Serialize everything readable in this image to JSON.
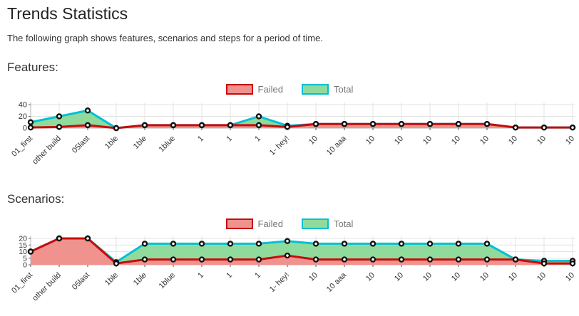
{
  "page": {
    "title": "Trends Statistics",
    "subtitle": "The following graph shows features, scenarios and steps for a period of time."
  },
  "legend": {
    "failed_label": "Failed",
    "total_label": "Total"
  },
  "colors": {
    "failed_line": "#c60c0c",
    "failed_fill": "#f0928d",
    "total_line": "#00c0d5",
    "total_fill": "#90db9c",
    "grid": "#e3e3e3",
    "axis": "#b3b3b3",
    "tick": "#555555",
    "text": "#333333",
    "marker_ring": "#111111",
    "marker_fill": "#ffffff",
    "legend_text": "#757575"
  },
  "chart_data": [
    {
      "type": "area",
      "title": "Features:",
      "categories": [
        "01_first",
        "other build",
        "05last",
        "1ble",
        "1ble",
        "1blue",
        "1",
        "1",
        "1",
        "1- hey!",
        "10",
        "10 aaa",
        "10",
        "10",
        "10",
        "10",
        "10",
        "10",
        "10",
        "10"
      ],
      "series": [
        {
          "name": "Failed",
          "values": [
            1,
            2,
            5,
            0,
            5,
            5,
            5,
            5,
            5,
            2,
            7,
            7,
            7,
            7,
            7,
            7,
            7,
            1,
            1,
            1
          ]
        },
        {
          "name": "Total",
          "values": [
            10,
            20,
            30,
            0,
            5,
            5,
            5,
            5,
            20,
            4,
            7,
            7,
            7,
            7,
            7,
            7,
            7,
            1,
            1,
            1
          ]
        }
      ],
      "ylim": [
        0,
        40
      ],
      "yticks": [
        0,
        20,
        40
      ],
      "legend_entries": [
        "Failed",
        "Total"
      ],
      "legend_position": "top-center",
      "grid": true
    },
    {
      "type": "area",
      "title": "Scenarios:",
      "categories": [
        "01_first",
        "other build",
        "05last",
        "1ble",
        "1ble",
        "1blue",
        "1",
        "1",
        "1",
        "1- hey!",
        "10",
        "10 aaa",
        "10",
        "10",
        "10",
        "10",
        "10",
        "10",
        "10",
        "10"
      ],
      "series": [
        {
          "name": "Failed",
          "values": [
            10,
            20,
            20,
            1,
            4,
            4,
            4,
            4,
            4,
            7,
            4,
            4,
            4,
            4,
            4,
            4,
            4,
            4,
            1,
            1
          ]
        },
        {
          "name": "Total",
          "values": [
            10,
            20,
            20,
            2,
            16,
            16,
            16,
            16,
            16,
            18,
            16,
            16,
            16,
            16,
            16,
            16,
            16,
            4,
            3,
            3
          ]
        }
      ],
      "ylim": [
        0,
        20
      ],
      "yticks": [
        0,
        5,
        10,
        15,
        20
      ],
      "legend_entries": [
        "Failed",
        "Total"
      ],
      "legend_position": "top-center",
      "grid": true
    }
  ]
}
